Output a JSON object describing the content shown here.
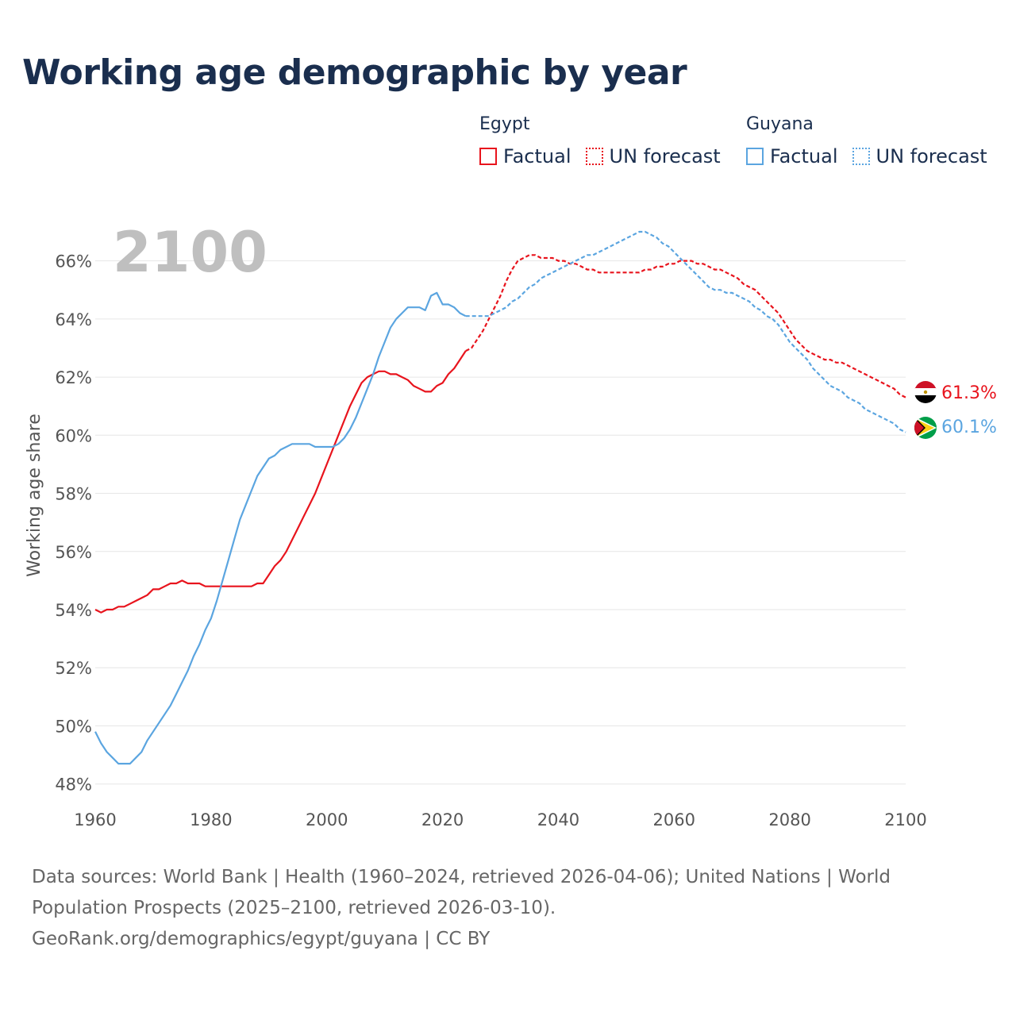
{
  "title": "Working age demographic by year",
  "legend": {
    "groups": [
      {
        "country": "Egypt",
        "factual_label": "Factual",
        "forecast_label": "UN forecast",
        "color": "#e8141d"
      },
      {
        "country": "Guyana",
        "factual_label": "Factual",
        "forecast_label": "UN forecast",
        "color": "#5ba5e0"
      }
    ]
  },
  "footer": {
    "line1": "Data sources: World Bank | Health (1960–2024, retrieved 2026-04-06); United Nations | World",
    "line2": "Population Prospects (2025–2100, retrieved 2026-03-10).",
    "line3": "GeoRank.org/demographics/egypt/guyana | CC BY"
  },
  "chart_data": {
    "type": "line",
    "ylabel": "Working age share",
    "xlabel": "",
    "year_label": "2100",
    "xlim": [
      1960,
      2100
    ],
    "ylim": [
      47.5,
      67
    ],
    "x_ticks": [
      1960,
      1980,
      2000,
      2020,
      2040,
      2060,
      2080,
      2100
    ],
    "y_ticks": [
      48,
      50,
      52,
      54,
      56,
      58,
      60,
      62,
      64,
      66
    ],
    "y_tick_labels": [
      "48%",
      "50%",
      "52%",
      "54%",
      "56%",
      "58%",
      "60%",
      "62%",
      "64%",
      "66%"
    ],
    "forecast_start_year": 2024,
    "series": [
      {
        "name": "Egypt",
        "color": "#e8141d",
        "end_label": "61.3%",
        "flag": "egypt-flag",
        "points": [
          [
            1960,
            54.0
          ],
          [
            1961,
            53.9
          ],
          [
            1962,
            54.0
          ],
          [
            1963,
            54.0
          ],
          [
            1964,
            54.1
          ],
          [
            1965,
            54.1
          ],
          [
            1966,
            54.2
          ],
          [
            1967,
            54.3
          ],
          [
            1968,
            54.4
          ],
          [
            1969,
            54.5
          ],
          [
            1970,
            54.7
          ],
          [
            1971,
            54.7
          ],
          [
            1972,
            54.8
          ],
          [
            1973,
            54.9
          ],
          [
            1974,
            54.9
          ],
          [
            1975,
            55.0
          ],
          [
            1976,
            54.9
          ],
          [
            1977,
            54.9
          ],
          [
            1978,
            54.9
          ],
          [
            1979,
            54.8
          ],
          [
            1980,
            54.8
          ],
          [
            1981,
            54.8
          ],
          [
            1982,
            54.8
          ],
          [
            1983,
            54.8
          ],
          [
            1984,
            54.8
          ],
          [
            1985,
            54.8
          ],
          [
            1986,
            54.8
          ],
          [
            1987,
            54.8
          ],
          [
            1988,
            54.9
          ],
          [
            1989,
            54.9
          ],
          [
            1990,
            55.2
          ],
          [
            1991,
            55.5
          ],
          [
            1992,
            55.7
          ],
          [
            1993,
            56.0
          ],
          [
            1994,
            56.4
          ],
          [
            1995,
            56.8
          ],
          [
            1996,
            57.2
          ],
          [
            1997,
            57.6
          ],
          [
            1998,
            58.0
          ],
          [
            1999,
            58.5
          ],
          [
            2000,
            59.0
          ],
          [
            2001,
            59.5
          ],
          [
            2002,
            60.0
          ],
          [
            2003,
            60.5
          ],
          [
            2004,
            61.0
          ],
          [
            2005,
            61.4
          ],
          [
            2006,
            61.8
          ],
          [
            2007,
            62.0
          ],
          [
            2008,
            62.1
          ],
          [
            2009,
            62.2
          ],
          [
            2010,
            62.2
          ],
          [
            2011,
            62.1
          ],
          [
            2012,
            62.1
          ],
          [
            2013,
            62.0
          ],
          [
            2014,
            61.9
          ],
          [
            2015,
            61.7
          ],
          [
            2016,
            61.6
          ],
          [
            2017,
            61.5
          ],
          [
            2018,
            61.5
          ],
          [
            2019,
            61.7
          ],
          [
            2020,
            61.8
          ],
          [
            2021,
            62.1
          ],
          [
            2022,
            62.3
          ],
          [
            2023,
            62.6
          ],
          [
            2024,
            62.9
          ],
          [
            2025,
            63.0
          ],
          [
            2026,
            63.3
          ],
          [
            2027,
            63.6
          ],
          [
            2028,
            64.0
          ],
          [
            2029,
            64.4
          ],
          [
            2030,
            64.8
          ],
          [
            2031,
            65.3
          ],
          [
            2032,
            65.7
          ],
          [
            2033,
            66.0
          ],
          [
            2034,
            66.1
          ],
          [
            2035,
            66.2
          ],
          [
            2036,
            66.2
          ],
          [
            2037,
            66.1
          ],
          [
            2038,
            66.1
          ],
          [
            2039,
            66.1
          ],
          [
            2040,
            66.0
          ],
          [
            2041,
            66.0
          ],
          [
            2042,
            65.9
          ],
          [
            2043,
            65.9
          ],
          [
            2044,
            65.8
          ],
          [
            2045,
            65.7
          ],
          [
            2046,
            65.7
          ],
          [
            2047,
            65.6
          ],
          [
            2048,
            65.6
          ],
          [
            2049,
            65.6
          ],
          [
            2050,
            65.6
          ],
          [
            2051,
            65.6
          ],
          [
            2052,
            65.6
          ],
          [
            2053,
            65.6
          ],
          [
            2054,
            65.6
          ],
          [
            2055,
            65.7
          ],
          [
            2056,
            65.7
          ],
          [
            2057,
            65.8
          ],
          [
            2058,
            65.8
          ],
          [
            2059,
            65.9
          ],
          [
            2060,
            65.9
          ],
          [
            2061,
            66.0
          ],
          [
            2062,
            66.0
          ],
          [
            2063,
            66.0
          ],
          [
            2064,
            65.9
          ],
          [
            2065,
            65.9
          ],
          [
            2066,
            65.8
          ],
          [
            2067,
            65.7
          ],
          [
            2068,
            65.7
          ],
          [
            2069,
            65.6
          ],
          [
            2070,
            65.5
          ],
          [
            2071,
            65.4
          ],
          [
            2072,
            65.2
          ],
          [
            2073,
            65.1
          ],
          [
            2074,
            65.0
          ],
          [
            2075,
            64.8
          ],
          [
            2076,
            64.6
          ],
          [
            2077,
            64.4
          ],
          [
            2078,
            64.2
          ],
          [
            2079,
            63.9
          ],
          [
            2080,
            63.6
          ],
          [
            2081,
            63.3
          ],
          [
            2082,
            63.1
          ],
          [
            2083,
            62.9
          ],
          [
            2084,
            62.8
          ],
          [
            2085,
            62.7
          ],
          [
            2086,
            62.6
          ],
          [
            2087,
            62.6
          ],
          [
            2088,
            62.5
          ],
          [
            2089,
            62.5
          ],
          [
            2090,
            62.4
          ],
          [
            2091,
            62.3
          ],
          [
            2092,
            62.2
          ],
          [
            2093,
            62.1
          ],
          [
            2094,
            62.0
          ],
          [
            2095,
            61.9
          ],
          [
            2096,
            61.8
          ],
          [
            2097,
            61.7
          ],
          [
            2098,
            61.6
          ],
          [
            2099,
            61.4
          ],
          [
            2100,
            61.3
          ]
        ]
      },
      {
        "name": "Guyana",
        "color": "#5ba5e0",
        "end_label": "60.1%",
        "flag": "guyana-flag",
        "points": [
          [
            1960,
            49.8
          ],
          [
            1961,
            49.4
          ],
          [
            1962,
            49.1
          ],
          [
            1963,
            48.9
          ],
          [
            1964,
            48.7
          ],
          [
            1965,
            48.7
          ],
          [
            1966,
            48.7
          ],
          [
            1967,
            48.9
          ],
          [
            1968,
            49.1
          ],
          [
            1969,
            49.5
          ],
          [
            1970,
            49.8
          ],
          [
            1971,
            50.1
          ],
          [
            1972,
            50.4
          ],
          [
            1973,
            50.7
          ],
          [
            1974,
            51.1
          ],
          [
            1975,
            51.5
          ],
          [
            1976,
            51.9
          ],
          [
            1977,
            52.4
          ],
          [
            1978,
            52.8
          ],
          [
            1979,
            53.3
          ],
          [
            1980,
            53.7
          ],
          [
            1981,
            54.3
          ],
          [
            1982,
            55.0
          ],
          [
            1983,
            55.7
          ],
          [
            1984,
            56.4
          ],
          [
            1985,
            57.1
          ],
          [
            1986,
            57.6
          ],
          [
            1987,
            58.1
          ],
          [
            1988,
            58.6
          ],
          [
            1989,
            58.9
          ],
          [
            1990,
            59.2
          ],
          [
            1991,
            59.3
          ],
          [
            1992,
            59.5
          ],
          [
            1993,
            59.6
          ],
          [
            1994,
            59.7
          ],
          [
            1995,
            59.7
          ],
          [
            1996,
            59.7
          ],
          [
            1997,
            59.7
          ],
          [
            1998,
            59.6
          ],
          [
            1999,
            59.6
          ],
          [
            2000,
            59.6
          ],
          [
            2001,
            59.6
          ],
          [
            2002,
            59.7
          ],
          [
            2003,
            59.9
          ],
          [
            2004,
            60.2
          ],
          [
            2005,
            60.6
          ],
          [
            2006,
            61.1
          ],
          [
            2007,
            61.6
          ],
          [
            2008,
            62.1
          ],
          [
            2009,
            62.7
          ],
          [
            2010,
            63.2
          ],
          [
            2011,
            63.7
          ],
          [
            2012,
            64.0
          ],
          [
            2013,
            64.2
          ],
          [
            2014,
            64.4
          ],
          [
            2015,
            64.4
          ],
          [
            2016,
            64.4
          ],
          [
            2017,
            64.3
          ],
          [
            2018,
            64.8
          ],
          [
            2019,
            64.9
          ],
          [
            2020,
            64.5
          ],
          [
            2021,
            64.5
          ],
          [
            2022,
            64.4
          ],
          [
            2023,
            64.2
          ],
          [
            2024,
            64.1
          ],
          [
            2025,
            64.1
          ],
          [
            2026,
            64.1
          ],
          [
            2027,
            64.1
          ],
          [
            2028,
            64.1
          ],
          [
            2029,
            64.2
          ],
          [
            2030,
            64.3
          ],
          [
            2031,
            64.4
          ],
          [
            2032,
            64.6
          ],
          [
            2033,
            64.7
          ],
          [
            2034,
            64.9
          ],
          [
            2035,
            65.1
          ],
          [
            2036,
            65.2
          ],
          [
            2037,
            65.4
          ],
          [
            2038,
            65.5
          ],
          [
            2039,
            65.6
          ],
          [
            2040,
            65.7
          ],
          [
            2041,
            65.8
          ],
          [
            2042,
            65.9
          ],
          [
            2043,
            66.0
          ],
          [
            2044,
            66.1
          ],
          [
            2045,
            66.2
          ],
          [
            2046,
            66.2
          ],
          [
            2047,
            66.3
          ],
          [
            2048,
            66.4
          ],
          [
            2049,
            66.5
          ],
          [
            2050,
            66.6
          ],
          [
            2051,
            66.7
          ],
          [
            2052,
            66.8
          ],
          [
            2053,
            66.9
          ],
          [
            2054,
            67.0
          ],
          [
            2055,
            67.0
          ],
          [
            2056,
            66.9
          ],
          [
            2057,
            66.8
          ],
          [
            2058,
            66.6
          ],
          [
            2059,
            66.5
          ],
          [
            2060,
            66.3
          ],
          [
            2061,
            66.1
          ],
          [
            2062,
            65.9
          ],
          [
            2063,
            65.7
          ],
          [
            2064,
            65.5
          ],
          [
            2065,
            65.3
          ],
          [
            2066,
            65.1
          ],
          [
            2067,
            65.0
          ],
          [
            2068,
            65.0
          ],
          [
            2069,
            64.9
          ],
          [
            2070,
            64.9
          ],
          [
            2071,
            64.8
          ],
          [
            2072,
            64.7
          ],
          [
            2073,
            64.6
          ],
          [
            2074,
            64.4
          ],
          [
            2075,
            64.3
          ],
          [
            2076,
            64.1
          ],
          [
            2077,
            64.0
          ],
          [
            2078,
            63.8
          ],
          [
            2079,
            63.5
          ],
          [
            2080,
            63.2
          ],
          [
            2081,
            63.0
          ],
          [
            2082,
            62.8
          ],
          [
            2083,
            62.6
          ],
          [
            2084,
            62.3
          ],
          [
            2085,
            62.1
          ],
          [
            2086,
            61.9
          ],
          [
            2087,
            61.7
          ],
          [
            2088,
            61.6
          ],
          [
            2089,
            61.5
          ],
          [
            2090,
            61.3
          ],
          [
            2091,
            61.2
          ],
          [
            2092,
            61.1
          ],
          [
            2093,
            60.9
          ],
          [
            2094,
            60.8
          ],
          [
            2095,
            60.7
          ],
          [
            2096,
            60.6
          ],
          [
            2097,
            60.5
          ],
          [
            2098,
            60.4
          ],
          [
            2099,
            60.2
          ],
          [
            2100,
            60.1
          ]
        ]
      }
    ]
  }
}
